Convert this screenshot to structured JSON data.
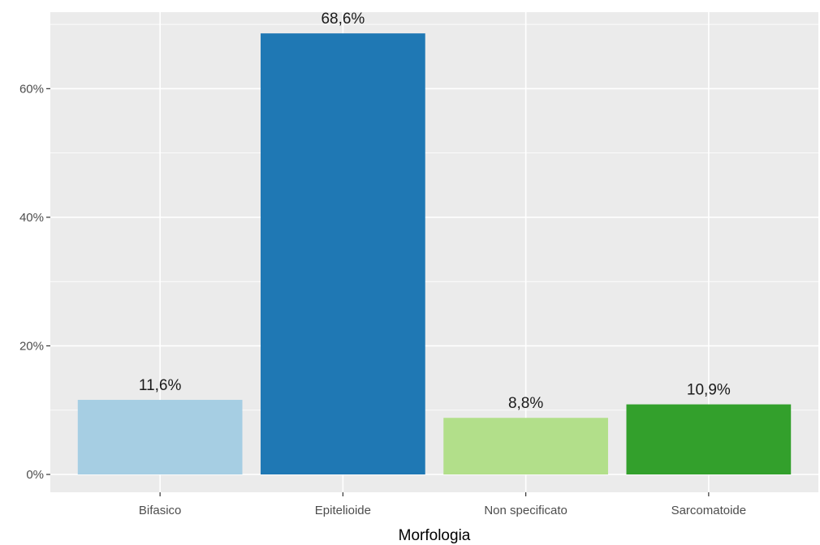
{
  "chart_data": {
    "type": "bar",
    "title": "",
    "xlabel": "Morfologia",
    "ylabel": "",
    "categories": [
      "Bifasico",
      "Epitelioide",
      "Non specificato",
      "Sarcomatoide"
    ],
    "values": [
      11.6,
      68.6,
      8.8,
      10.9
    ],
    "value_labels": [
      "11,6%",
      "68,6%",
      "8,8%",
      "10,9%"
    ],
    "colors": [
      "#a6cee3",
      "#1f78b4",
      "#b2df8a",
      "#33a02c"
    ],
    "ylim": [
      0,
      71.9
    ],
    "y_ticks": [
      0,
      20,
      40,
      60
    ],
    "y_tick_labels": [
      "0%",
      "20%",
      "40%",
      "60%"
    ],
    "grid": true,
    "legend": "none",
    "panel_background": "#ebebeb",
    "gridline_color": "#ffffff"
  }
}
